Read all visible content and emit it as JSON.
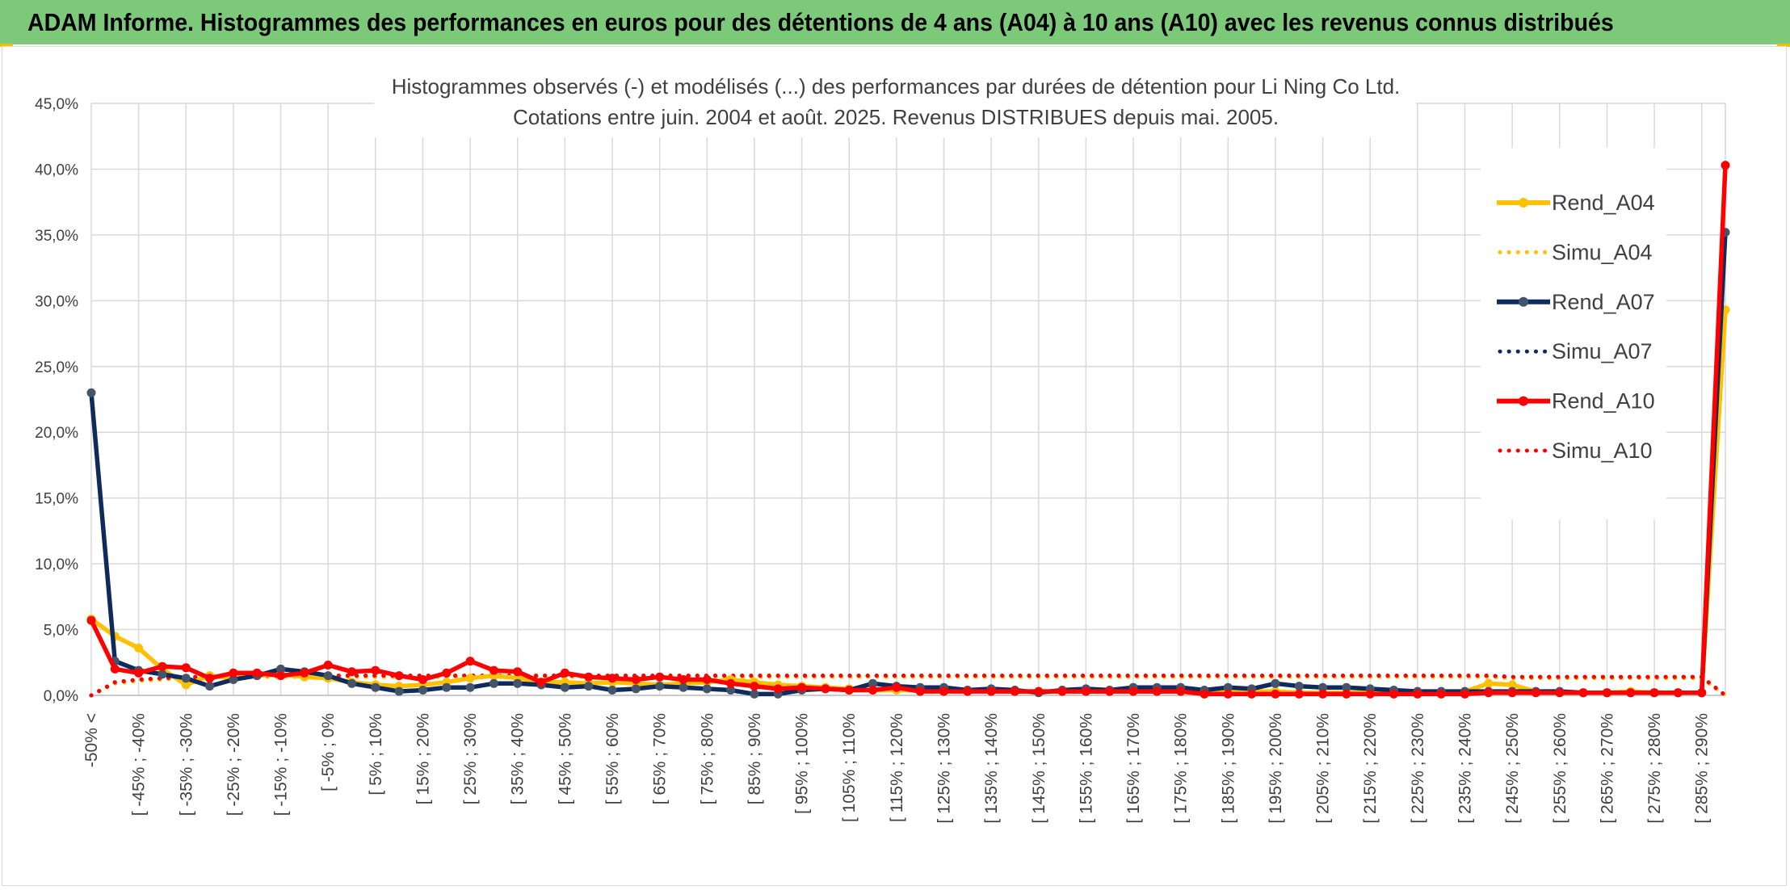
{
  "header": {
    "title": "ADAM Informe. Histogrammes des performances en euros pour des détentions de 4 ans (A04) à 10 ans (A10) avec les revenus connus distribués"
  },
  "chart_data": {
    "type": "line",
    "title_line1": "Histogrammes observés (-) et modélisés (...) des performances par durées de détention pour Li Ning Co Ltd.",
    "title_line2": "Cotations entre juin. 2004 et août. 2025. Revenus DISTRIBUES depuis mai. 2005.",
    "ylim": [
      0,
      45
    ],
    "yticks": [
      "0,0%",
      "5,0%",
      "10,0%",
      "15,0%",
      "20,0%",
      "25,0%",
      "30,0%",
      "35,0%",
      "40,0%",
      "45,0%"
    ],
    "grid": true,
    "legend_position": "top-right",
    "x_tick_labels": [
      "-50% <",
      "[ -45% ; -40%",
      "[ -35% ; -30%",
      "[ -25% ; -20%",
      "[ -15% ; -10%",
      "[ -5% ; 0%",
      "[ 5% ; 10%",
      "[ 15% ; 20%",
      "[ 25% ; 30%",
      "[ 35% ; 40%",
      "[ 45% ; 50%",
      "[ 55% ; 60%",
      "[ 65% ; 70%",
      "[ 75% ; 80%",
      "[ 85% ; 90%",
      "[ 95% ; 100%",
      "[ 105% ; 110%",
      "[ 115% ; 120%",
      "[ 125% ; 130%",
      "[ 135% ; 140%",
      "[ 145% ; 150%",
      "[ 155% ; 160%",
      "[ 165% ; 170%",
      "[ 175% ; 180%",
      "[ 185% ; 190%",
      "[ 195% ; 200%",
      "[ 205% ; 210%",
      "[ 215% ; 220%",
      "[ 225% ; 230%",
      "[ 235% ; 240%",
      "[ 245% ; 250%",
      "[ 255% ; 260%",
      "[ 265% ; 270%",
      "[ 275% ; 280%",
      "[ 285% ; 290%"
    ],
    "n_points": 70,
    "series": [
      {
        "name": "Rend_A04",
        "color": "#ffc000",
        "style": "solid",
        "values": [
          5.8,
          4.5,
          3.6,
          2.0,
          0.8,
          1.5,
          1.3,
          1.5,
          1.6,
          1.4,
          1.3,
          1.0,
          0.8,
          0.7,
          0.8,
          1.0,
          1.3,
          1.5,
          1.3,
          1.0,
          1.0,
          0.9,
          1.0,
          0.9,
          0.8,
          0.9,
          1.0,
          1.2,
          1.0,
          0.8,
          0.7,
          0.6,
          0.5,
          0.4,
          0.4,
          0.4,
          0.3,
          0.4,
          0.3,
          0.3,
          0.3,
          0.3,
          0.3,
          0.3,
          0.3,
          0.3,
          0.3,
          0.3,
          0.3,
          0.3,
          0.3,
          0.2,
          0.2,
          0.2,
          0.2,
          0.3,
          0.3,
          0.2,
          0.3,
          0.9,
          0.8,
          0.3,
          0.2,
          0.2,
          0.2,
          0.3,
          0.2,
          0.2,
          0.2,
          29.3
        ]
      },
      {
        "name": "Simu_A04",
        "color": "#ffc000",
        "style": "dotted",
        "values": [
          0.0,
          0.9,
          1.1,
          1.2,
          1.3,
          1.3,
          1.4,
          1.4,
          1.4,
          1.4,
          1.4,
          1.4,
          1.4,
          1.4,
          1.4,
          1.4,
          1.4,
          1.4,
          1.4,
          1.4,
          1.4,
          1.4,
          1.4,
          1.4,
          1.4,
          1.4,
          1.4,
          1.4,
          1.4,
          1.4,
          1.4,
          1.4,
          1.4,
          1.4,
          1.4,
          1.4,
          1.4,
          1.4,
          1.4,
          1.4,
          1.4,
          1.4,
          1.4,
          1.4,
          1.4,
          1.4,
          1.4,
          1.4,
          1.4,
          1.4,
          1.4,
          1.4,
          1.4,
          1.4,
          1.4,
          1.4,
          1.4,
          1.4,
          1.4,
          1.4,
          1.3,
          1.3,
          1.3,
          1.3,
          1.3,
          1.3,
          1.3,
          1.3,
          1.3,
          0.0
        ]
      },
      {
        "name": "Rend_A07",
        "color": "#0f2a5c",
        "style": "solid",
        "values": [
          23.0,
          2.6,
          1.9,
          1.6,
          1.3,
          0.7,
          1.2,
          1.5,
          2.0,
          1.8,
          1.5,
          0.9,
          0.6,
          0.3,
          0.4,
          0.6,
          0.6,
          0.9,
          0.9,
          0.8,
          0.6,
          0.7,
          0.4,
          0.5,
          0.7,
          0.6,
          0.5,
          0.4,
          0.1,
          0.1,
          0.4,
          0.5,
          0.4,
          0.9,
          0.7,
          0.6,
          0.6,
          0.4,
          0.5,
          0.4,
          0.2,
          0.4,
          0.5,
          0.4,
          0.6,
          0.6,
          0.6,
          0.4,
          0.6,
          0.5,
          0.9,
          0.7,
          0.6,
          0.6,
          0.5,
          0.4,
          0.3,
          0.3,
          0.3,
          0.3,
          0.3,
          0.3,
          0.3,
          0.2,
          0.2,
          0.2,
          0.2,
          0.2,
          0.2,
          35.2
        ]
      },
      {
        "name": "Simu_A07",
        "color": "#0f2a5c",
        "style": "dotted",
        "values": [
          0.0,
          1.0,
          1.2,
          1.3,
          1.4,
          1.4,
          1.5,
          1.5,
          1.5,
          1.5,
          1.5,
          1.5,
          1.5,
          1.5,
          1.5,
          1.5,
          1.5,
          1.5,
          1.5,
          1.5,
          1.5,
          1.5,
          1.5,
          1.5,
          1.5,
          1.5,
          1.5,
          1.5,
          1.5,
          1.5,
          1.5,
          1.5,
          1.5,
          1.5,
          1.5,
          1.5,
          1.5,
          1.5,
          1.5,
          1.5,
          1.5,
          1.5,
          1.5,
          1.5,
          1.5,
          1.5,
          1.5,
          1.5,
          1.5,
          1.5,
          1.5,
          1.5,
          1.5,
          1.5,
          1.5,
          1.5,
          1.5,
          1.5,
          1.5,
          1.5,
          1.4,
          1.4,
          1.4,
          1.4,
          1.4,
          1.4,
          1.4,
          1.4,
          1.4,
          0.0
        ]
      },
      {
        "name": "Rend_A10",
        "color": "#ff0000",
        "style": "solid",
        "values": [
          5.7,
          2.0,
          1.7,
          2.2,
          2.1,
          1.3,
          1.7,
          1.7,
          1.5,
          1.7,
          2.3,
          1.8,
          1.9,
          1.5,
          1.2,
          1.7,
          2.6,
          1.9,
          1.8,
          1.0,
          1.7,
          1.4,
          1.3,
          1.2,
          1.4,
          1.2,
          1.2,
          0.9,
          0.7,
          0.5,
          0.6,
          0.5,
          0.4,
          0.4,
          0.6,
          0.3,
          0.3,
          0.3,
          0.3,
          0.3,
          0.3,
          0.3,
          0.3,
          0.3,
          0.3,
          0.3,
          0.3,
          0.1,
          0.1,
          0.1,
          0.1,
          0.1,
          0.1,
          0.1,
          0.1,
          0.1,
          0.1,
          0.1,
          0.1,
          0.2,
          0.2,
          0.2,
          0.2,
          0.2,
          0.2,
          0.2,
          0.2,
          0.2,
          0.2,
          40.3
        ]
      },
      {
        "name": "Simu_A10",
        "color": "#ff0000",
        "style": "dotted",
        "values": [
          0.0,
          1.0,
          1.2,
          1.3,
          1.4,
          1.4,
          1.5,
          1.5,
          1.5,
          1.5,
          1.5,
          1.5,
          1.5,
          1.5,
          1.5,
          1.5,
          1.5,
          1.5,
          1.5,
          1.5,
          1.5,
          1.5,
          1.5,
          1.5,
          1.5,
          1.5,
          1.5,
          1.5,
          1.5,
          1.5,
          1.5,
          1.5,
          1.5,
          1.5,
          1.5,
          1.5,
          1.5,
          1.5,
          1.5,
          1.5,
          1.5,
          1.5,
          1.5,
          1.5,
          1.5,
          1.5,
          1.5,
          1.5,
          1.5,
          1.5,
          1.5,
          1.5,
          1.5,
          1.5,
          1.5,
          1.5,
          1.5,
          1.5,
          1.5,
          1.5,
          1.4,
          1.4,
          1.4,
          1.4,
          1.4,
          1.4,
          1.4,
          1.4,
          1.4,
          0.0
        ]
      }
    ]
  }
}
